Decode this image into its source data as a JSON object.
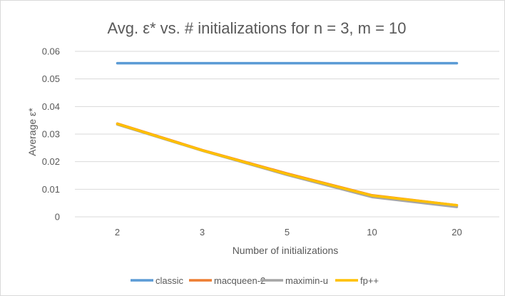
{
  "chart_data": {
    "type": "line",
    "title": "Avg. ε* vs. # initializations for n = 3, m = 10",
    "xlabel": "Number of initializations",
    "ylabel": "Average ε*",
    "categories": [
      "2",
      "3",
      "5",
      "10",
      "20"
    ],
    "ylim": [
      0,
      0.06
    ],
    "yticks": [
      0,
      0.01,
      0.02,
      0.03,
      0.04,
      0.05,
      0.06
    ],
    "ytick_labels": [
      "0",
      "0.01",
      "0.02",
      "0.03",
      "0.04",
      "0.05",
      "0.06"
    ],
    "grid": true,
    "legend_position": "bottom",
    "series": [
      {
        "name": "classic",
        "color": "#5B9BD5",
        "values": [
          0.0557,
          0.0557,
          0.0557,
          0.0557,
          0.0557
        ]
      },
      {
        "name": "macqueen-2",
        "color": "#ED7D31",
        "values": [
          0.0338,
          0.0242,
          0.0157,
          0.0078,
          0.0042
        ]
      },
      {
        "name": "maximin-u",
        "color": "#A5A5A5",
        "values": [
          0.0335,
          0.024,
          0.0152,
          0.0072,
          0.0036
        ]
      },
      {
        "name": "fp++",
        "color": "#FFC000",
        "values": [
          0.0337,
          0.0241,
          0.0155,
          0.0077,
          0.0042
        ]
      }
    ]
  }
}
